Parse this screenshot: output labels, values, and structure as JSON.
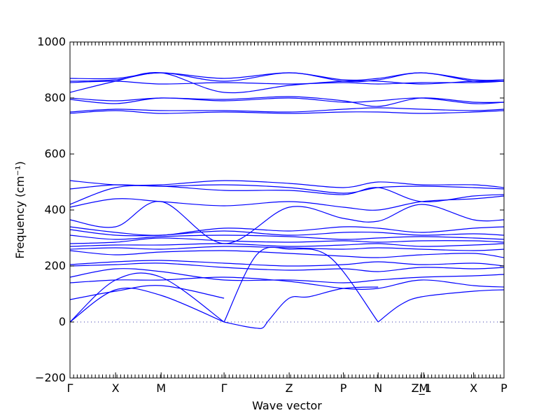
{
  "chart_data": {
    "type": "line",
    "xlabel": "Wave vector",
    "ylabel": "Frequency (cm⁻¹)",
    "ylim": [
      -200,
      1000
    ],
    "yticks": [
      -200,
      0,
      200,
      400,
      600,
      800,
      1000
    ],
    "xlim": [
      0,
      10
    ],
    "high_symmetry_points": [
      {
        "label": "Γ",
        "x": 0.0
      },
      {
        "label": "X",
        "x": 1.05
      },
      {
        "label": "M",
        "x": 2.1
      },
      {
        "label": "Γ",
        "x": 3.55
      },
      {
        "label": "Z",
        "x": 5.05
      },
      {
        "label": "P",
        "x": 6.3
      },
      {
        "label": "N",
        "x": 7.1
      },
      {
        "label": "Z_1",
        "x": 8.1
      },
      {
        "label": "M",
        "x": 8.15
      },
      {
        "label": "X",
        "x": 9.3
      },
      {
        "label": "P",
        "x": 10.0
      }
    ],
    "reference_line": {
      "y": 0,
      "style": "dotted"
    },
    "grid": false,
    "legend": "none",
    "series_color": "#0000ff",
    "series": [
      {
        "x": [
          0,
          1.05,
          2.1,
          3.55
        ],
        "y": [
          0,
          115,
          95,
          0
        ]
      },
      {
        "x": [
          0,
          1.05,
          2.1,
          3.55
        ],
        "y": [
          0,
          150,
          160,
          0
        ]
      },
      {
        "x": [
          0,
          1.05,
          2.1,
          3.55
        ],
        "y": [
          80,
          110,
          130,
          85
        ]
      },
      {
        "x": [
          3.55,
          4.0,
          4.3,
          4.45,
          4.6,
          5.05,
          5.5,
          6.3,
          7.1
        ],
        "y": [
          0,
          -15,
          -22,
          -20,
          10,
          85,
          90,
          120,
          125
        ]
      },
      {
        "x": [
          3.55,
          4.3,
          5.05,
          6.0,
          7.1
        ],
        "y": [
          0,
          240,
          260,
          230,
          0
        ]
      },
      {
        "x": [
          7.1,
          7.6,
          8.1,
          9.3,
          10.0
        ],
        "y": [
          0,
          60,
          90,
          110,
          115
        ]
      },
      {
        "x": [
          0,
          1.05,
          2.1,
          3.55,
          5.05,
          6.3,
          7.1,
          8.1,
          9.3,
          10.0
        ],
        "y": [
          140,
          150,
          150,
          160,
          145,
          120,
          120,
          150,
          130,
          125
        ]
      },
      {
        "x": [
          0,
          1.05,
          2.1,
          3.55,
          5.05,
          6.3,
          7.1,
          8.1,
          9.3,
          10.0
        ],
        "y": [
          160,
          190,
          180,
          150,
          150,
          140,
          150,
          160,
          165,
          170
        ]
      },
      {
        "x": [
          0,
          1.05,
          2.1,
          3.55,
          5.05,
          6.3,
          7.1,
          8.1,
          9.3,
          10.0
        ],
        "y": [
          200,
          205,
          210,
          195,
          185,
          190,
          180,
          195,
          190,
          195
        ]
      },
      {
        "x": [
          0,
          1.05,
          2.1,
          3.55,
          5.05,
          6.3,
          7.1,
          8.1,
          9.3,
          10.0
        ],
        "y": [
          205,
          215,
          220,
          210,
          200,
          205,
          215,
          205,
          210,
          200
        ]
      },
      {
        "x": [
          0,
          1.05,
          2.1,
          3.55,
          5.05,
          6.3,
          7.1,
          8.1,
          9.3,
          10.0
        ],
        "y": [
          255,
          240,
          250,
          255,
          245,
          235,
          230,
          240,
          245,
          230
        ]
      },
      {
        "x": [
          0,
          1.05,
          2.1,
          3.55,
          5.05,
          6.3,
          7.1,
          8.1,
          9.3,
          10.0
        ],
        "y": [
          260,
          265,
          260,
          270,
          265,
          260,
          265,
          260,
          255,
          260
        ]
      },
      {
        "x": [
          0,
          1.05,
          2.1,
          3.55,
          5.05,
          6.3,
          7.1,
          8.1,
          9.3,
          10.0
        ],
        "y": [
          270,
          275,
          275,
          280,
          270,
          275,
          280,
          270,
          275,
          280
        ]
      },
      {
        "x": [
          0,
          1.05,
          2.1,
          3.55,
          5.05,
          6.3,
          7.1,
          8.1,
          9.3,
          10.0
        ],
        "y": [
          280,
          285,
          300,
          290,
          285,
          290,
          285,
          290,
          290,
          285
        ]
      },
      {
        "x": [
          0,
          1.05,
          2.1,
          3.55,
          5.05,
          6.3,
          7.1,
          8.1,
          9.3,
          10.0
        ],
        "y": [
          310,
          295,
          305,
          310,
          305,
          295,
          300,
          305,
          300,
          295
        ]
      },
      {
        "x": [
          0,
          1.05,
          2.1,
          3.55,
          5.05,
          6.3,
          7.1,
          8.1,
          9.3,
          10.0
        ],
        "y": [
          330,
          310,
          310,
          325,
          310,
          320,
          320,
          310,
          315,
          310
        ]
      },
      {
        "x": [
          0,
          1.05,
          2.1,
          3.55,
          5.05,
          6.3,
          7.1,
          8.1,
          9.3,
          10.0
        ],
        "y": [
          340,
          320,
          310,
          335,
          325,
          340,
          335,
          320,
          335,
          340
        ]
      },
      {
        "x": [
          0,
          1.05,
          2.1,
          3.55,
          5.05,
          6.3,
          7.1,
          8.1,
          9.3,
          10.0
        ],
        "y": [
          365,
          340,
          430,
          280,
          410,
          370,
          360,
          420,
          365,
          365
        ]
      },
      {
        "x": [
          0,
          1.05,
          2.1,
          3.55,
          5.05,
          6.3,
          7.1,
          8.1,
          9.3,
          10.0
        ],
        "y": [
          410,
          440,
          430,
          415,
          430,
          410,
          400,
          430,
          440,
          450
        ]
      },
      {
        "x": [
          0,
          1.05,
          2.1,
          3.55,
          5.05,
          6.3,
          7.1,
          8.1,
          9.3,
          10.0
        ],
        "y": [
          420,
          480,
          485,
          470,
          470,
          455,
          480,
          430,
          450,
          455
        ]
      },
      {
        "x": [
          0,
          1.05,
          2.1,
          3.55,
          5.05,
          6.3,
          7.1,
          8.1,
          9.3,
          10.0
        ],
        "y": [
          475,
          490,
          485,
          490,
          480,
          460,
          480,
          485,
          480,
          475
        ]
      },
      {
        "x": [
          0,
          1.05,
          2.1,
          3.55,
          5.05,
          6.3,
          7.1,
          8.1,
          9.3,
          10.0
        ],
        "y": [
          505,
          490,
          490,
          505,
          495,
          480,
          500,
          490,
          490,
          480
        ]
      },
      {
        "x": [
          0,
          1.05,
          2.1,
          3.55,
          5.05,
          6.3,
          7.1,
          8.1,
          9.3,
          10.0
        ],
        "y": [
          745,
          755,
          745,
          750,
          745,
          750,
          750,
          745,
          750,
          755
        ]
      },
      {
        "x": [
          0,
          1.05,
          2.1,
          3.55,
          5.05,
          6.3,
          7.1,
          8.1,
          9.3,
          10.0
        ],
        "y": [
          750,
          760,
          755,
          755,
          750,
          760,
          765,
          760,
          755,
          760
        ]
      },
      {
        "x": [
          0,
          1.05,
          2.1,
          3.55,
          5.05,
          6.3,
          7.1,
          8.1,
          9.3,
          10.0
        ],
        "y": [
          795,
          780,
          800,
          790,
          800,
          785,
          790,
          800,
          780,
          785
        ]
      },
      {
        "x": [
          0,
          1.05,
          2.1,
          3.55,
          5.05,
          6.3,
          7.1,
          8.1,
          9.3,
          10.0
        ],
        "y": [
          800,
          790,
          800,
          795,
          805,
          790,
          770,
          800,
          785,
          785
        ]
      },
      {
        "x": [
          0,
          1.05,
          2.1,
          3.55,
          5.05,
          6.3,
          7.1,
          8.1,
          9.3,
          10.0
        ],
        "y": [
          820,
          860,
          890,
          820,
          845,
          860,
          860,
          850,
          860,
          860
        ]
      },
      {
        "x": [
          0,
          1.05,
          2.1,
          3.55,
          5.05,
          6.3,
          7.1,
          8.1,
          9.3,
          10.0
        ],
        "y": [
          855,
          860,
          850,
          855,
          850,
          855,
          850,
          855,
          855,
          860
        ]
      },
      {
        "x": [
          0,
          1.05,
          2.1,
          3.55,
          5.05,
          6.3,
          7.1,
          8.1,
          9.3,
          10.0
        ],
        "y": [
          860,
          865,
          890,
          860,
          890,
          860,
          865,
          890,
          860,
          860
        ]
      },
      {
        "x": [
          0,
          1.05,
          2.1,
          3.55,
          5.05,
          6.3,
          7.1,
          8.1,
          9.3,
          10.0
        ],
        "y": [
          870,
          870,
          890,
          870,
          890,
          865,
          870,
          890,
          865,
          865
        ]
      }
    ]
  }
}
